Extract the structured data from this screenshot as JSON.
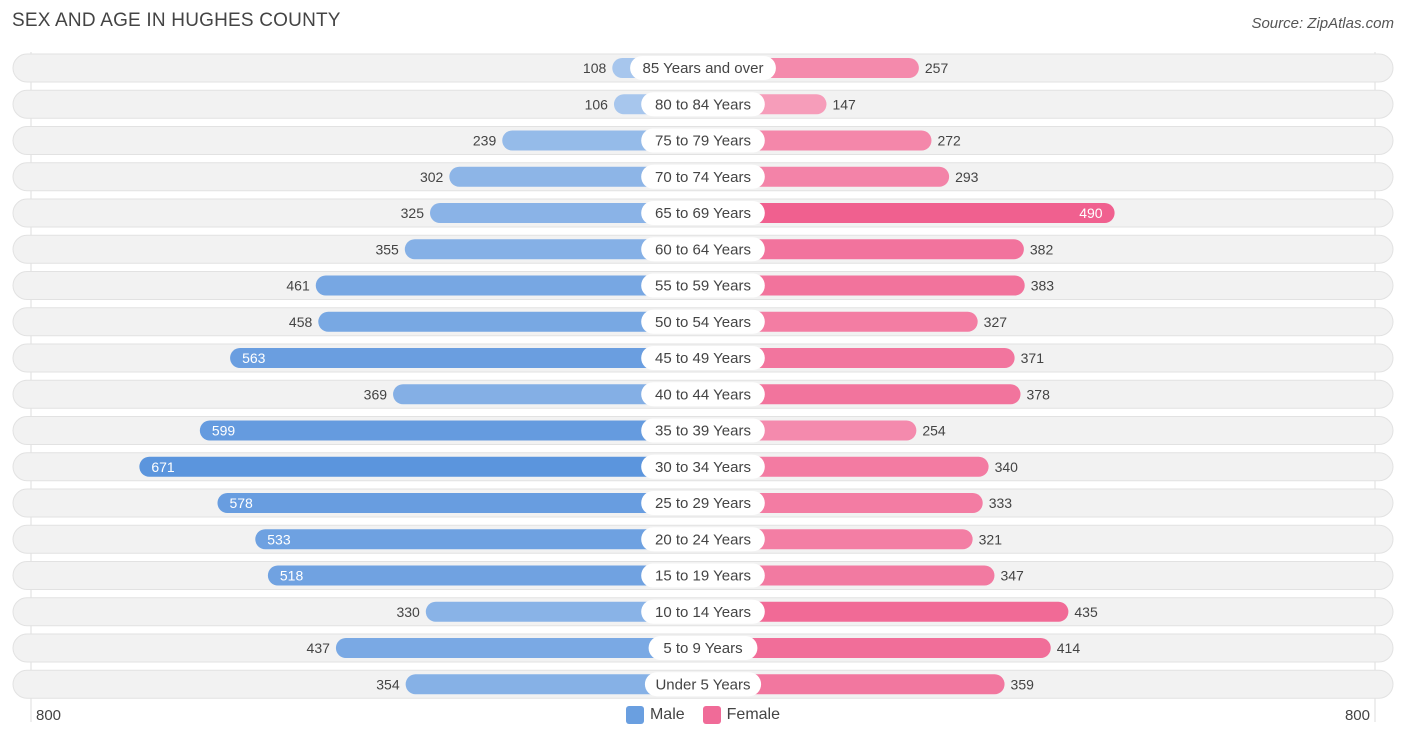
{
  "header": {
    "title": "SEX AND AGE IN HUGHES COUNTY",
    "source": "Source: ZipAtlas.com"
  },
  "axis": {
    "left_label": "800",
    "right_label": "800"
  },
  "legend": {
    "male_label": "Male",
    "female_label": "Female",
    "male_color": "#6a9fe0",
    "female_color": "#f06b98"
  },
  "chart_data": {
    "type": "bar",
    "title": "SEX AND AGE IN HUGHES COUNTY",
    "orientation": "horizontal-diverging",
    "xlim": [
      -800,
      800
    ],
    "categories": [
      "85 Years and over",
      "80 to 84 Years",
      "75 to 79 Years",
      "70 to 74 Years",
      "65 to 69 Years",
      "60 to 64 Years",
      "55 to 59 Years",
      "50 to 54 Years",
      "45 to 49 Years",
      "40 to 44 Years",
      "35 to 39 Years",
      "30 to 34 Years",
      "25 to 29 Years",
      "20 to 24 Years",
      "15 to 19 Years",
      "10 to 14 Years",
      "5 to 9 Years",
      "Under 5 Years"
    ],
    "series": [
      {
        "name": "Male",
        "values": [
          108,
          106,
          239,
          302,
          325,
          355,
          461,
          458,
          563,
          369,
          599,
          671,
          578,
          533,
          518,
          330,
          437,
          354
        ]
      },
      {
        "name": "Female",
        "values": [
          257,
          147,
          272,
          293,
          490,
          382,
          383,
          327,
          371,
          378,
          254,
          340,
          333,
          321,
          347,
          435,
          414,
          359
        ]
      }
    ],
    "legend_position": "bottom-center"
  }
}
